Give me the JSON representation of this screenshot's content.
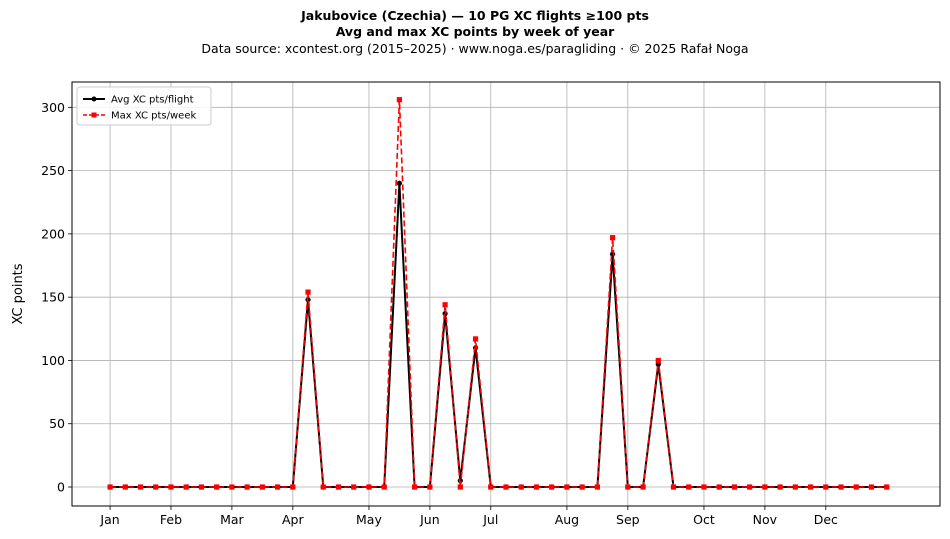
{
  "header": {
    "title": "Jakubovice (Czechia)  —  10 PG XC flights ≥100 pts",
    "subtitle": "Avg and max XC points by week of year",
    "source": "Data source: xcontest.org (2015–2025)  ·  www.noga.es/paragliding  ·  © 2025 Rafał Noga"
  },
  "chart_data": {
    "type": "line",
    "ylabel": "XC points",
    "xlabel": "",
    "ylim": [
      -15,
      320
    ],
    "xlim": [
      -2.5,
      54.5
    ],
    "grid": true,
    "legend_position": "top-left",
    "x_ticks": [
      {
        "label": "Jan",
        "x": 0
      },
      {
        "label": "Feb",
        "x": 4
      },
      {
        "label": "Mar",
        "x": 8
      },
      {
        "label": "Apr",
        "x": 12
      },
      {
        "label": "May",
        "x": 17
      },
      {
        "label": "Jun",
        "x": 21
      },
      {
        "label": "Jul",
        "x": 25
      },
      {
        "label": "Aug",
        "x": 30
      },
      {
        "label": "Sep",
        "x": 34
      },
      {
        "label": "Oct",
        "x": 39
      },
      {
        "label": "Nov",
        "x": 43
      },
      {
        "label": "Dec",
        "x": 47
      }
    ],
    "y_ticks": [
      0,
      50,
      100,
      150,
      200,
      250,
      300
    ],
    "x": [
      0,
      1,
      2,
      3,
      4,
      5,
      6,
      7,
      8,
      9,
      10,
      11,
      12,
      13,
      14,
      15,
      16,
      17,
      18,
      19,
      20,
      21,
      22,
      23,
      24,
      25,
      26,
      27,
      28,
      29,
      30,
      31,
      32,
      33,
      34,
      35,
      36,
      37,
      38,
      39,
      40,
      41,
      42,
      43,
      44,
      45,
      46,
      47,
      48,
      49,
      50,
      51
    ],
    "series": [
      {
        "name": "Avg XC pts/flight",
        "color": "#000000",
        "style": "solid",
        "marker": "circle",
        "values": [
          0,
          0,
          0,
          0,
          0,
          0,
          0,
          0,
          0,
          0,
          0,
          0,
          0,
          148,
          0,
          0,
          0,
          0,
          0,
          240,
          0,
          0,
          137,
          5,
          110,
          0,
          0,
          0,
          0,
          0,
          0,
          0,
          0,
          184,
          0,
          0,
          97,
          0,
          0,
          0,
          0,
          0,
          0,
          0,
          0,
          0,
          0,
          0,
          0,
          0,
          0,
          0
        ]
      },
      {
        "name": "Max XC pts/week",
        "color": "#ff0000",
        "style": "dashed",
        "marker": "square",
        "values": [
          0,
          0,
          0,
          0,
          0,
          0,
          0,
          0,
          0,
          0,
          0,
          0,
          0,
          154,
          0,
          0,
          0,
          0,
          0,
          306,
          0,
          0,
          144,
          0,
          117,
          0,
          0,
          0,
          0,
          0,
          0,
          0,
          0,
          197,
          0,
          0,
          100,
          0,
          0,
          0,
          0,
          0,
          0,
          0,
          0,
          0,
          0,
          0,
          0,
          0,
          0,
          0
        ]
      }
    ]
  }
}
